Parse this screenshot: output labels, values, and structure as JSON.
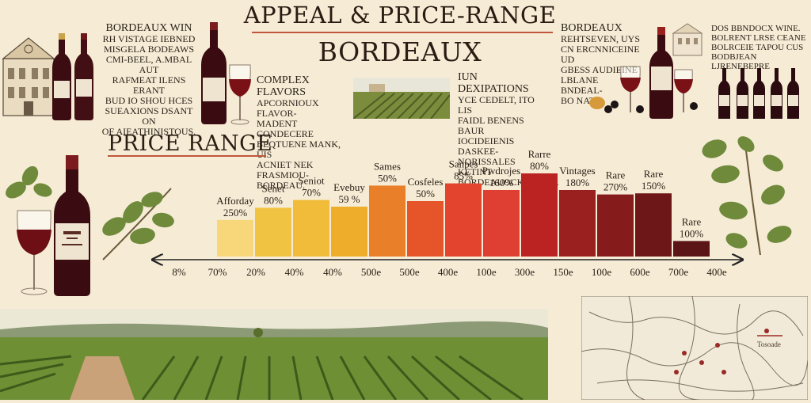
{
  "header": {
    "title": "APPEAL & PRICE-RANGE",
    "subtitle": "BORDEAUX"
  },
  "blurbs": {
    "left": {
      "heading": "BORDEAUX WIN",
      "lines": [
        "RH VISTAGE IEBNED",
        "MISGELA BODEAWS",
        "CMI-BEEL, A.MBAL AUT",
        "RAFMEAT ILENS ERANT",
        "BUD IO SHOU HCES",
        "SUEAXIONS DSANT ON",
        "OF AIEATHINISTOUS."
      ]
    },
    "middle": {
      "heading": "COMPLEX FLAVORS",
      "lines": [
        "APCORNIOUX FLAVOR-",
        "MADENT CONDECERE",
        "BEQTUENE MANK, UIS",
        "ACNIET NEK FRASMIOU-",
        "BORDEAU."
      ]
    },
    "center": {
      "heading": "IUN DEXIPATIONS",
      "lines": [
        "YCE CEDELT, ITO LIS",
        "FAIDL BENENS BAUR",
        "IOCIDEIENIS DASKEE-",
        "NORISSALES KETINT",
        "BORDEAUOCKERONH."
      ]
    },
    "right": {
      "heading": "BORDEAUX",
      "lines": [
        "REHTSEVEN, UYS",
        "CN ERCNNICEINE UD",
        "GBESS AUDIEINE",
        "LBLANE BNDEAL-",
        "BO NATS."
      ]
    },
    "far_right": {
      "lines": [
        "DOS BBNDOCX WINE.",
        "BOLRENT LRSE CEANE",
        "BOLRCEIE TAPOU CUS",
        "BODBJEAN LJRENEBEPRE"
      ]
    }
  },
  "chart_data": {
    "type": "bar",
    "title": "PRICE RANGE",
    "bars": [
      {
        "label": "Afforday 250%",
        "value": 0.33
      },
      {
        "label": "Senet 80%",
        "value": 0.44
      },
      {
        "label": "Seniot 70%",
        "value": 0.51
      },
      {
        "label": "Evebuy 59 %",
        "value": 0.45
      },
      {
        "label": "Sames 50%",
        "value": 0.64
      },
      {
        "label": "Cosfeles 50%",
        "value": 0.5
      },
      {
        "label": "Sanpes 85%",
        "value": 0.66
      },
      {
        "label": "Pwdrojes 160%",
        "value": 0.6
      },
      {
        "label": "Rarre 80%",
        "value": 0.75
      },
      {
        "label": "Vintages 180%",
        "value": 0.6
      },
      {
        "label": "Rare 270%",
        "value": 0.56
      },
      {
        "label": "Rare 150%",
        "value": 0.57
      },
      {
        "label": "Rare 100%",
        "value": 0.14
      }
    ],
    "ticks": [
      "8%",
      "70%",
      "20%",
      "40%",
      "40%",
      "500e",
      "500e",
      "400e",
      "100e",
      "300e",
      "150e",
      "100e",
      "600e",
      "700e",
      "400e"
    ],
    "colors": [
      "#f7d77a",
      "#f1c342",
      "#f0bc3a",
      "#eeae2c",
      "#ea7f2a",
      "#e6552a",
      "#e2442e",
      "#df3f32",
      "#bb2323",
      "#9a1f1f",
      "#861b1c",
      "#6e1719",
      "#5c1517"
    ]
  },
  "icons": {
    "building": "chateau-building-icon",
    "wine_bottle": "wine-bottle-icon",
    "wine_glass": "wine-glass-icon",
    "grape_leaf": "grape-leaf-icon",
    "vineyard": "vineyard-landscape",
    "map": "region-map"
  },
  "map": {
    "legend_label": "Tosoade"
  }
}
